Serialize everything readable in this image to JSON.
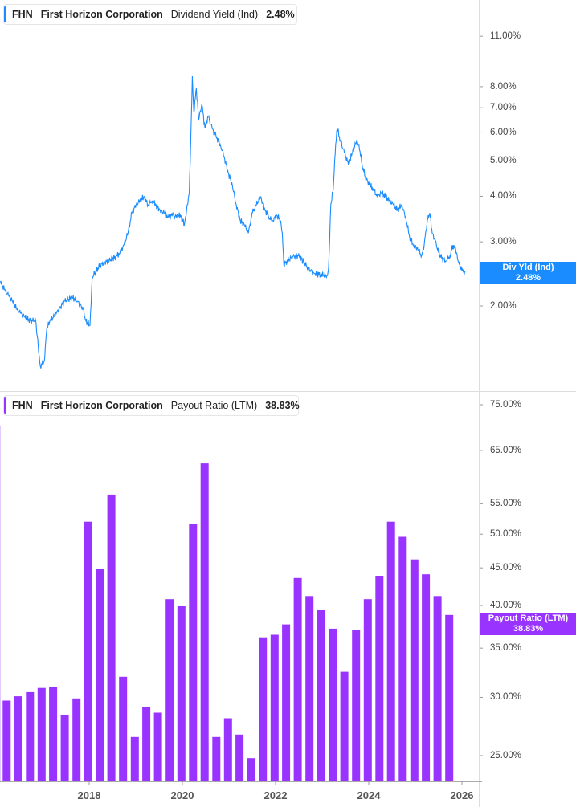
{
  "chart_data": [
    {
      "type": "line",
      "ticker": "FHN",
      "company": "First Horizon Corporation",
      "metric": "Dividend Yield (Ind)",
      "current_value": "2.48%",
      "flag_label": "Div Yld (Ind)",
      "flag_value": "2.48%",
      "color": "#1a8cff",
      "y_scale": "log",
      "y_ticks": [
        "11.00%",
        "8.00%",
        "7.00%",
        "6.00%",
        "5.00%",
        "4.00%",
        "3.00%",
        "2.00%"
      ],
      "y_tick_values": [
        11,
        8,
        7,
        6,
        5,
        4,
        3,
        2
      ],
      "points": [
        [
          "2016-02-03",
          2.34
        ],
        [
          "2016-03-06",
          2.22
        ],
        [
          "2016-04-08",
          2.14
        ],
        [
          "2016-05-10",
          2.06
        ],
        [
          "2016-06-12",
          1.96
        ],
        [
          "2016-07-15",
          1.91
        ],
        [
          "2016-08-16",
          1.86
        ],
        [
          "2016-09-27",
          1.82
        ],
        [
          "2016-11-08",
          1.83
        ],
        [
          "2016-11-27",
          1.56
        ],
        [
          "2016-12-14",
          1.37
        ],
        [
          "2017-01-14",
          1.41
        ],
        [
          "2017-02-03",
          1.73
        ],
        [
          "2017-02-28",
          1.82
        ],
        [
          "2017-04-19",
          1.91
        ],
        [
          "2017-06-20",
          2.06
        ],
        [
          "2017-08-21",
          2.11
        ],
        [
          "2017-10-03",
          2.06
        ],
        [
          "2017-11-15",
          1.96
        ],
        [
          "2017-12-06",
          1.82
        ],
        [
          "2018-01-07",
          1.77
        ],
        [
          "2018-01-25",
          2.4
        ],
        [
          "2018-02-13",
          2.46
        ],
        [
          "2018-03-28",
          2.59
        ],
        [
          "2018-05-29",
          2.66
        ],
        [
          "2018-07-30",
          2.73
        ],
        [
          "2018-08-30",
          2.8
        ],
        [
          "2018-09-30",
          2.94
        ],
        [
          "2018-11-01",
          3.17
        ],
        [
          "2018-12-02",
          3.6
        ],
        [
          "2019-01-03",
          3.79
        ],
        [
          "2019-02-03",
          3.89
        ],
        [
          "2019-03-07",
          3.99
        ],
        [
          "2019-04-07",
          3.79
        ],
        [
          "2019-05-09",
          3.89
        ],
        [
          "2019-06-09",
          3.79
        ],
        [
          "2019-07-11",
          3.66
        ],
        [
          "2019-08-12",
          3.6
        ],
        [
          "2019-09-12",
          3.51
        ],
        [
          "2019-10-14",
          3.55
        ],
        [
          "2019-11-14",
          3.51
        ],
        [
          "2019-12-16",
          3.55
        ],
        [
          "2020-01-17",
          3.34
        ],
        [
          "2020-02-04",
          3.7
        ],
        [
          "2020-02-24",
          4.09
        ],
        [
          "2020-03-06",
          5.55
        ],
        [
          "2020-03-19",
          8.54
        ],
        [
          "2020-03-31",
          6.8
        ],
        [
          "2020-04-20",
          7.91
        ],
        [
          "2020-05-08",
          6.48
        ],
        [
          "2020-06-02",
          7.15
        ],
        [
          "2020-06-27",
          6.14
        ],
        [
          "2020-07-22",
          6.63
        ],
        [
          "2020-08-22",
          6.14
        ],
        [
          "2020-09-22",
          5.84
        ],
        [
          "2020-10-24",
          5.55
        ],
        [
          "2020-11-24",
          5.14
        ],
        [
          "2020-12-26",
          4.64
        ],
        [
          "2021-01-27",
          4.3
        ],
        [
          "2021-02-27",
          3.79
        ],
        [
          "2021-03-31",
          3.43
        ],
        [
          "2021-05-02",
          3.34
        ],
        [
          "2021-06-02",
          3.17
        ],
        [
          "2021-07-04",
          3.6
        ],
        [
          "2021-08-04",
          3.79
        ],
        [
          "2021-09-05",
          3.99
        ],
        [
          "2021-10-07",
          3.7
        ],
        [
          "2021-11-07",
          3.51
        ],
        [
          "2021-12-09",
          3.43
        ],
        [
          "2022-01-10",
          3.55
        ],
        [
          "2022-02-10",
          3.43
        ],
        [
          "2022-02-23",
          3.17
        ],
        [
          "2022-03-07",
          2.59
        ],
        [
          "2022-04-01",
          2.66
        ],
        [
          "2022-05-15",
          2.73
        ],
        [
          "2022-06-28",
          2.75
        ],
        [
          "2022-08-04",
          2.66
        ],
        [
          "2022-09-16",
          2.53
        ],
        [
          "2022-10-30",
          2.46
        ],
        [
          "2022-12-19",
          2.44
        ],
        [
          "2023-02-07",
          2.42
        ],
        [
          "2023-02-20",
          2.53
        ],
        [
          "2023-03-10",
          3.79
        ],
        [
          "2023-03-29",
          4.19
        ],
        [
          "2023-04-17",
          5.55
        ],
        [
          "2023-04-29",
          6.14
        ],
        [
          "2023-05-24",
          5.69
        ],
        [
          "2023-06-24",
          5.28
        ],
        [
          "2023-07-26",
          4.89
        ],
        [
          "2023-08-27",
          5.28
        ],
        [
          "2023-09-28",
          5.69
        ],
        [
          "2023-10-16",
          5.55
        ],
        [
          "2023-11-10",
          4.89
        ],
        [
          "2023-12-05",
          4.52
        ],
        [
          "2024-01-06",
          4.3
        ],
        [
          "2024-02-06",
          4.19
        ],
        [
          "2024-03-09",
          3.99
        ],
        [
          "2024-04-10",
          4.09
        ],
        [
          "2024-05-11",
          3.99
        ],
        [
          "2024-06-12",
          3.89
        ],
        [
          "2024-07-14",
          3.79
        ],
        [
          "2024-08-14",
          3.66
        ],
        [
          "2024-09-15",
          3.79
        ],
        [
          "2024-10-17",
          3.51
        ],
        [
          "2024-11-17",
          3.09
        ],
        [
          "2024-12-19",
          2.94
        ],
        [
          "2025-01-20",
          2.87
        ],
        [
          "2025-02-20",
          2.75
        ],
        [
          "2025-03-11",
          2.94
        ],
        [
          "2025-04-05",
          3.43
        ],
        [
          "2025-04-24",
          3.6
        ],
        [
          "2025-05-13",
          3.17
        ],
        [
          "2025-06-07",
          3.02
        ],
        [
          "2025-07-02",
          2.8
        ],
        [
          "2025-07-27",
          2.7
        ],
        [
          "2025-08-28",
          2.66
        ],
        [
          "2025-09-29",
          2.75
        ],
        [
          "2025-10-24",
          2.94
        ],
        [
          "2025-11-12",
          2.87
        ],
        [
          "2025-12-01",
          2.66
        ],
        [
          "2026-01-02",
          2.49
        ],
        [
          "2026-01-27",
          2.48
        ]
      ]
    },
    {
      "type": "bar",
      "ticker": "FHN",
      "company": "First Horizon Corporation",
      "metric": "Payout Ratio (LTM)",
      "current_value": "38.83%",
      "flag_label": "Payout Ratio (LTM)",
      "flag_value": "38.83%",
      "color": "#9933ff",
      "y_scale": "log",
      "y_ticks": [
        "75.00%",
        "65.00%",
        "55.00%",
        "50.00%",
        "45.00%",
        "40.00%",
        "35.00%",
        "30.00%",
        "25.00%"
      ],
      "y_tick_values": [
        75,
        65,
        55,
        50,
        45,
        40,
        35,
        30,
        25
      ],
      "x_ticks": [
        "2018",
        "2020",
        "2022",
        "2024",
        "2026"
      ],
      "categories": [
        "2016-03-31",
        "2016-06-30",
        "2016-09-30",
        "2016-12-31",
        "2017-03-31",
        "2017-06-30",
        "2017-09-30",
        "2017-12-31",
        "2018-03-31",
        "2018-06-30",
        "2018-09-30",
        "2018-12-31",
        "2019-03-31",
        "2019-06-30",
        "2019-09-30",
        "2019-12-31",
        "2020-03-31",
        "2020-06-30",
        "2020-09-30",
        "2020-12-31",
        "2021-03-31",
        "2021-06-30",
        "2021-09-30",
        "2021-12-31",
        "2022-03-31",
        "2022-06-30",
        "2022-09-30",
        "2022-12-31",
        "2023-03-31",
        "2023-06-30",
        "2023-09-30",
        "2023-12-31",
        "2024-03-31",
        "2024-06-30",
        "2024-09-30",
        "2024-12-31",
        "2025-03-31",
        "2025-06-30",
        "2025-09-30"
      ],
      "values": [
        29.7,
        30.1,
        30.5,
        30.9,
        31.0,
        28.4,
        29.9,
        52.0,
        44.9,
        56.6,
        32.0,
        26.5,
        29.1,
        28.6,
        40.8,
        39.9,
        51.6,
        62.4,
        26.5,
        28.1,
        26.7,
        24.8,
        36.2,
        36.5,
        37.7,
        43.6,
        41.2,
        39.4,
        37.2,
        32.5,
        37.0,
        40.8,
        43.9,
        52.0,
        49.6,
        46.2,
        44.1,
        41.2,
        38.83
      ]
    }
  ]
}
